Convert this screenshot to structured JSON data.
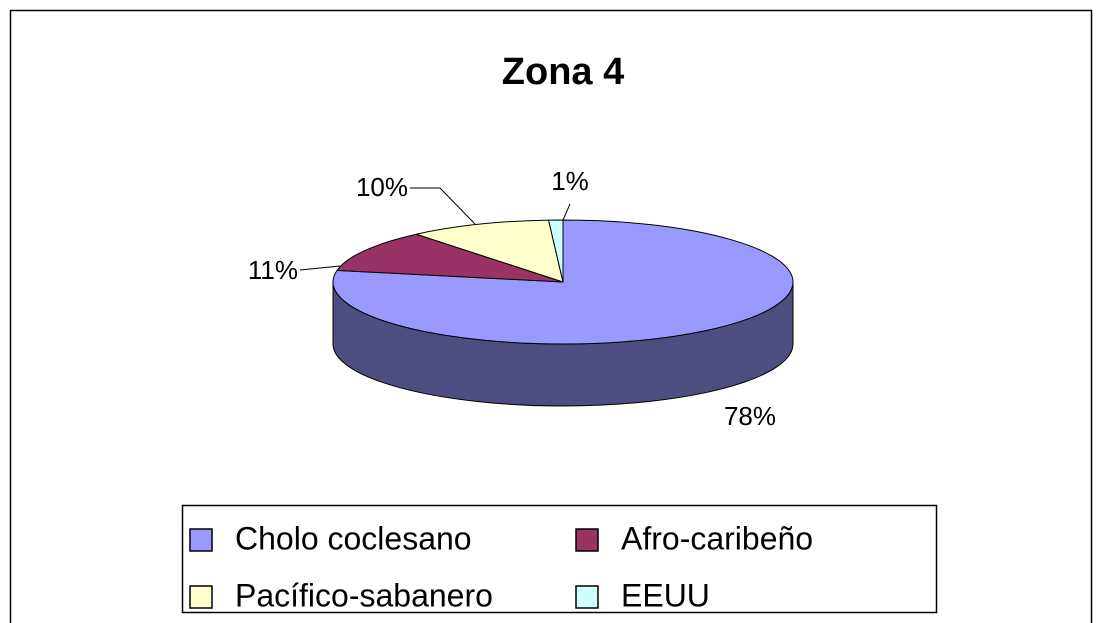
{
  "chart_data": {
    "type": "pie",
    "title": "Zona 4",
    "categories": [
      "Cholo coclesano",
      "Afro-caribeño",
      "Pacífico-sabanero",
      "EEUU"
    ],
    "values": [
      78,
      11,
      10,
      1
    ],
    "value_labels": [
      "78%",
      "11%",
      "10%",
      "1%"
    ],
    "colors": [
      "#9999ff",
      "#993366",
      "#ffffcc",
      "#ccffff"
    ],
    "legend": "bottom"
  }
}
